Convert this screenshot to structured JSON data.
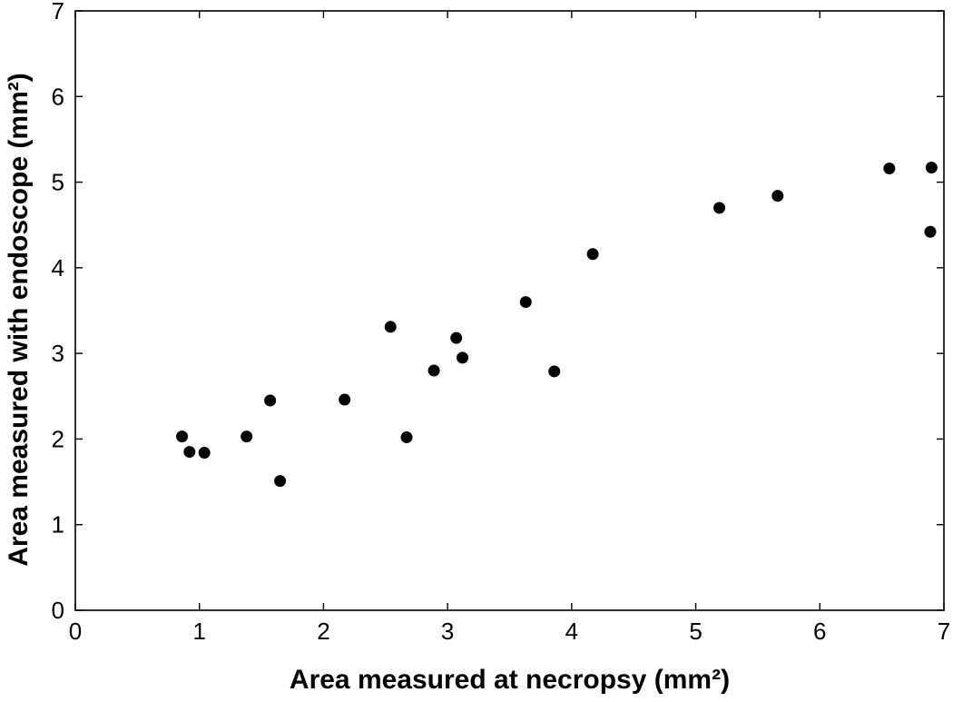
{
  "chart_data": {
    "type": "scatter",
    "xlabel": "Area measured at necropsy (mm²)",
    "ylabel": "Area measured with endoscope (mm²)",
    "xlim": [
      0,
      7
    ],
    "ylim": [
      0,
      7
    ],
    "x_ticks": [
      "0",
      "1",
      "2",
      "3",
      "4",
      "5",
      "6",
      "7"
    ],
    "y_ticks": [
      "0",
      "1",
      "2",
      "3",
      "4",
      "5",
      "6",
      "7"
    ],
    "grid": false,
    "box": true,
    "marker_color": "#000000",
    "series": [
      {
        "points": [
          {
            "x": 0.86,
            "y": 2.03
          },
          {
            "x": 0.92,
            "y": 1.85
          },
          {
            "x": 1.04,
            "y": 1.84
          },
          {
            "x": 1.38,
            "y": 2.03
          },
          {
            "x": 1.57,
            "y": 2.45
          },
          {
            "x": 1.65,
            "y": 1.51
          },
          {
            "x": 2.17,
            "y": 2.46
          },
          {
            "x": 2.54,
            "y": 3.31
          },
          {
            "x": 2.67,
            "y": 2.02
          },
          {
            "x": 2.89,
            "y": 2.8
          },
          {
            "x": 3.07,
            "y": 3.18
          },
          {
            "x": 3.12,
            "y": 2.95
          },
          {
            "x": 3.63,
            "y": 3.6
          },
          {
            "x": 3.86,
            "y": 2.79
          },
          {
            "x": 4.17,
            "y": 4.16
          },
          {
            "x": 5.19,
            "y": 4.7
          },
          {
            "x": 5.66,
            "y": 4.84
          },
          {
            "x": 6.56,
            "y": 5.16
          },
          {
            "x": 6.89,
            "y": 4.42
          },
          {
            "x": 6.9,
            "y": 5.17
          }
        ]
      }
    ]
  }
}
